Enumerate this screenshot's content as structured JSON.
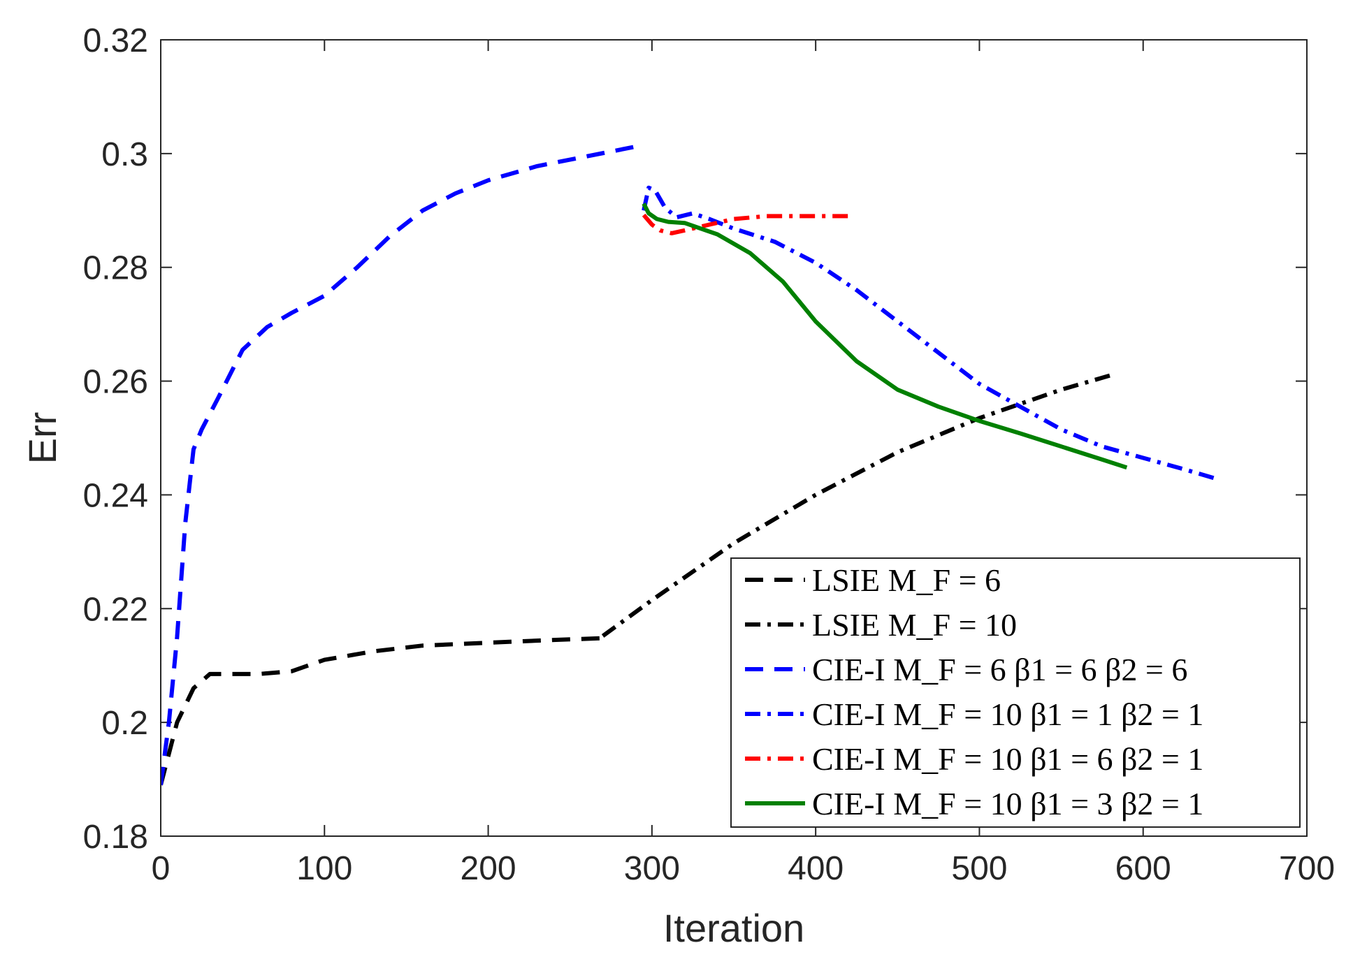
{
  "chart_data": {
    "type": "line",
    "title": "",
    "xlabel": "Iteration",
    "ylabel": "Err",
    "xlim": [
      0,
      700
    ],
    "ylim": [
      0.18,
      0.32
    ],
    "xticks": [
      0,
      100,
      200,
      300,
      400,
      500,
      600,
      700
    ],
    "yticks": [
      0.18,
      0.2,
      0.22,
      0.24,
      0.26,
      0.28,
      0.3,
      0.32
    ],
    "xtick_labels": [
      "0",
      "100",
      "200",
      "300",
      "400",
      "500",
      "600",
      "700"
    ],
    "ytick_labels": [
      "0.18",
      "0.2",
      "0.22",
      "0.24",
      "0.26",
      "0.28",
      "0.3",
      "0.32"
    ],
    "grid": false,
    "legend_position": "bottom-right",
    "series": [
      {
        "name": "LSIE M_F = 6",
        "legend_label": "LSIE M_F = 6",
        "color": "#000000",
        "dash": "dashed",
        "x": [
          0,
          10,
          20,
          30,
          40,
          60,
          80,
          100,
          130,
          160,
          200,
          240,
          270
        ],
        "y": [
          0.189,
          0.2,
          0.206,
          0.2085,
          0.2085,
          0.2085,
          0.209,
          0.211,
          0.2125,
          0.2135,
          0.214,
          0.2145,
          0.2148
        ]
      },
      {
        "name": "LSIE M_F = 10",
        "legend_label": "LSIE M_F = 10",
        "color": "#000000",
        "dash": "dashdot",
        "x": [
          270,
          300,
          350,
          400,
          450,
          500,
          550,
          580
        ],
        "y": [
          0.2152,
          0.2215,
          0.2315,
          0.24,
          0.2475,
          0.2535,
          0.2585,
          0.261
        ]
      },
      {
        "name": "CIE-I M_F = 6 β1 = 6 β2 = 6",
        "legend_label": "CIE-I M_F = 6 β1 = 6 β2 = 6",
        "color": "#0000ff",
        "dash": "dashed",
        "x": [
          0,
          5,
          10,
          15,
          20,
          25,
          35,
          50,
          65,
          80,
          100,
          120,
          140,
          160,
          180,
          200,
          230,
          260,
          295
        ],
        "y": [
          0.189,
          0.2,
          0.215,
          0.235,
          0.248,
          0.2515,
          0.257,
          0.2655,
          0.2695,
          0.272,
          0.275,
          0.28,
          0.2855,
          0.29,
          0.293,
          0.2953,
          0.2978,
          0.2995,
          0.3015
        ]
      },
      {
        "name": "CIE-I M_F = 10 β1 = 1 β2 = 1",
        "legend_label": "CIE-I M_F = 10 β1 = 1 β2 = 1",
        "color": "#0000ff",
        "dash": "dashdot",
        "x": [
          295,
          298,
          302,
          308,
          315,
          325,
          335,
          350,
          375,
          400,
          425,
          450,
          475,
          500,
          525,
          550,
          575,
          600,
          625,
          645
        ],
        "y": [
          0.29,
          0.294,
          0.2935,
          0.2905,
          0.2888,
          0.2895,
          0.2885,
          0.2868,
          0.2845,
          0.2808,
          0.276,
          0.2705,
          0.265,
          0.2595,
          0.2555,
          0.2515,
          0.2485,
          0.2465,
          0.2445,
          0.2428
        ]
      },
      {
        "name": "CIE-I M_F = 10 β1 = 6 β2 = 1",
        "legend_label": "CIE-I M_F = 10 β1 = 6 β2 = 1",
        "color": "#ff0000",
        "dash": "dashdot",
        "x": [
          295,
          300,
          305,
          312,
          320,
          335,
          350,
          370,
          390,
          420
        ],
        "y": [
          0.2892,
          0.2875,
          0.2865,
          0.286,
          0.2865,
          0.2875,
          0.2885,
          0.289,
          0.289,
          0.289
        ]
      },
      {
        "name": "CIE-I M_F = 10 β1 = 3 β2 = 1",
        "legend_label": "CIE-I M_F = 10 β1 = 3 β2 = 1",
        "color": "#008000",
        "dash": "solid",
        "x": [
          295,
          298,
          303,
          310,
          320,
          340,
          360,
          380,
          400,
          425,
          450,
          475,
          500,
          525,
          550,
          575,
          590
        ],
        "y": [
          0.2912,
          0.2895,
          0.2885,
          0.288,
          0.2878,
          0.2858,
          0.2825,
          0.2775,
          0.2705,
          0.2635,
          0.2585,
          0.2555,
          0.253,
          0.2508,
          0.2485,
          0.2462,
          0.2448
        ]
      }
    ]
  }
}
